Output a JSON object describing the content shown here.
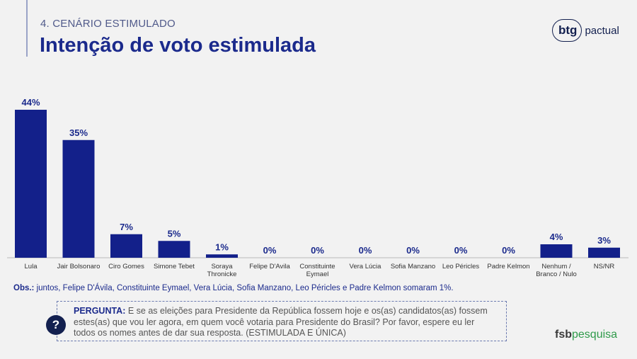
{
  "header": {
    "section": "4. CENÁRIO ESTIMULADO",
    "title": "Intenção de voto estimulada"
  },
  "brand": {
    "btg_mark": "btg",
    "btg_text": "pactual",
    "fsb_a": "fsb",
    "fsb_b": "pesquisa"
  },
  "chart_data": {
    "type": "bar",
    "categories": [
      "Lula",
      "Jair Bolsonaro",
      "Ciro Gomes",
      "Simone Tebet",
      "Soraya Thronicke",
      "Felipe D'Avila",
      "Constituinte Eymael",
      "Vera Lúcia",
      "Sofia Manzano",
      "Leo Péricles",
      "Padre Kelmon",
      "Nenhum / Branco / Nulo",
      "NS/NR"
    ],
    "category_lines": [
      [
        "Lula"
      ],
      [
        "Jair Bolsonaro"
      ],
      [
        "Ciro Gomes"
      ],
      [
        "Simone Tebet"
      ],
      [
        "Soraya",
        "Thronicke"
      ],
      [
        "Felipe D'Avila"
      ],
      [
        "Constituinte",
        "Eymael"
      ],
      [
        "Vera Lúcia"
      ],
      [
        "Sofia Manzano"
      ],
      [
        "Leo Péricles"
      ],
      [
        "Padre Kelmon"
      ],
      [
        "Nenhum /",
        "Branco / Nulo"
      ],
      [
        "NS/NR"
      ]
    ],
    "values": [
      44,
      35,
      7,
      5,
      1,
      0,
      0,
      0,
      0,
      0,
      0,
      4,
      3
    ],
    "labels": [
      "44%",
      "35%",
      "7%",
      "5%",
      "1%",
      "0%",
      "0%",
      "0%",
      "0%",
      "0%",
      "0%",
      "4%",
      "3%"
    ],
    "ylim": [
      0,
      44
    ],
    "bar_color": "#13208a",
    "grid": false
  },
  "obs": {
    "label": "Obs.:",
    "text": " juntos, Felipe D'Ávila, Constituinte Eymael, Vera Lúcia, Sofia Manzano, Leo Péricles e Padre Kelmon somaram 1%."
  },
  "question": {
    "icon": "question-icon",
    "icon_glyph": "?",
    "label": "PERGUNTA:",
    "text": " E se as eleições para Presidente da República fossem hoje e os(as) candidatos(as) fossem estes(as) que vou ler agora, em quem você votaria para Presidente do Brasil? Por favor, espere eu ler todos os nomes antes de dar sua resposta. (ESTIMULADA E ÚNICA)"
  }
}
